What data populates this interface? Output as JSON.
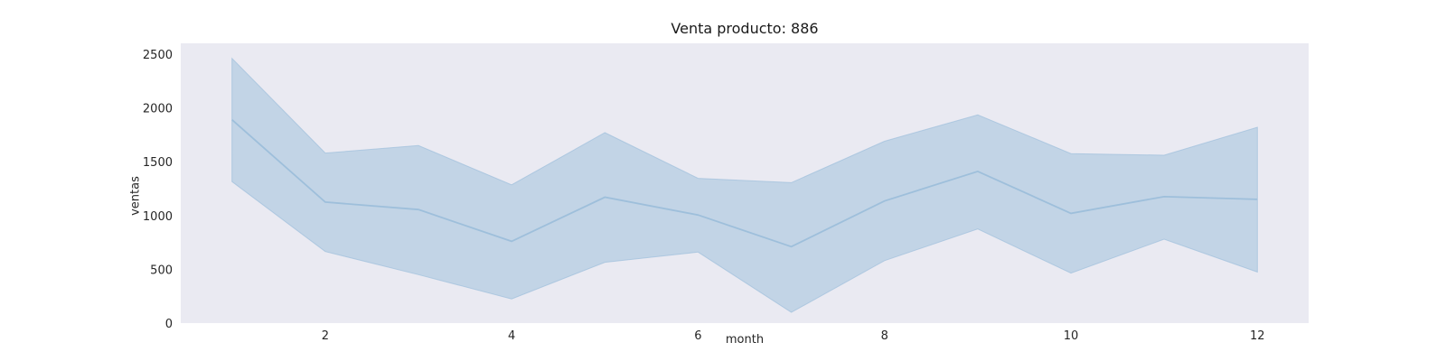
{
  "chart_data": {
    "type": "line",
    "title": "Venta producto: 886",
    "xlabel": "month",
    "ylabel": "ventas",
    "x": [
      1,
      2,
      3,
      4,
      5,
      6,
      7,
      8,
      9,
      10,
      11,
      12
    ],
    "series": [
      {
        "values": [
          1890,
          1125,
          1055,
          760,
          1170,
          1005,
          710,
          1135,
          1410,
          1020,
          1175,
          1150
        ],
        "ci_upper": [
          2460,
          1580,
          1650,
          1285,
          1770,
          1345,
          1305,
          1690,
          1935,
          1575,
          1560,
          1820
        ],
        "ci_lower": [
          1315,
          665,
          450,
          225,
          565,
          660,
          100,
          580,
          875,
          465,
          780,
          475
        ]
      }
    ],
    "xlim": [
      0.45,
      12.55
    ],
    "ylim": [
      0,
      2600
    ],
    "xticks": [
      2,
      4,
      6,
      8,
      10,
      12
    ],
    "yticks": [
      0,
      500,
      1000,
      1500,
      2000,
      2500
    ],
    "grid": false,
    "colors": {
      "line": "#9ebfdb",
      "band": "#c2d4e6",
      "plot_background": "#eaeaf2"
    }
  }
}
